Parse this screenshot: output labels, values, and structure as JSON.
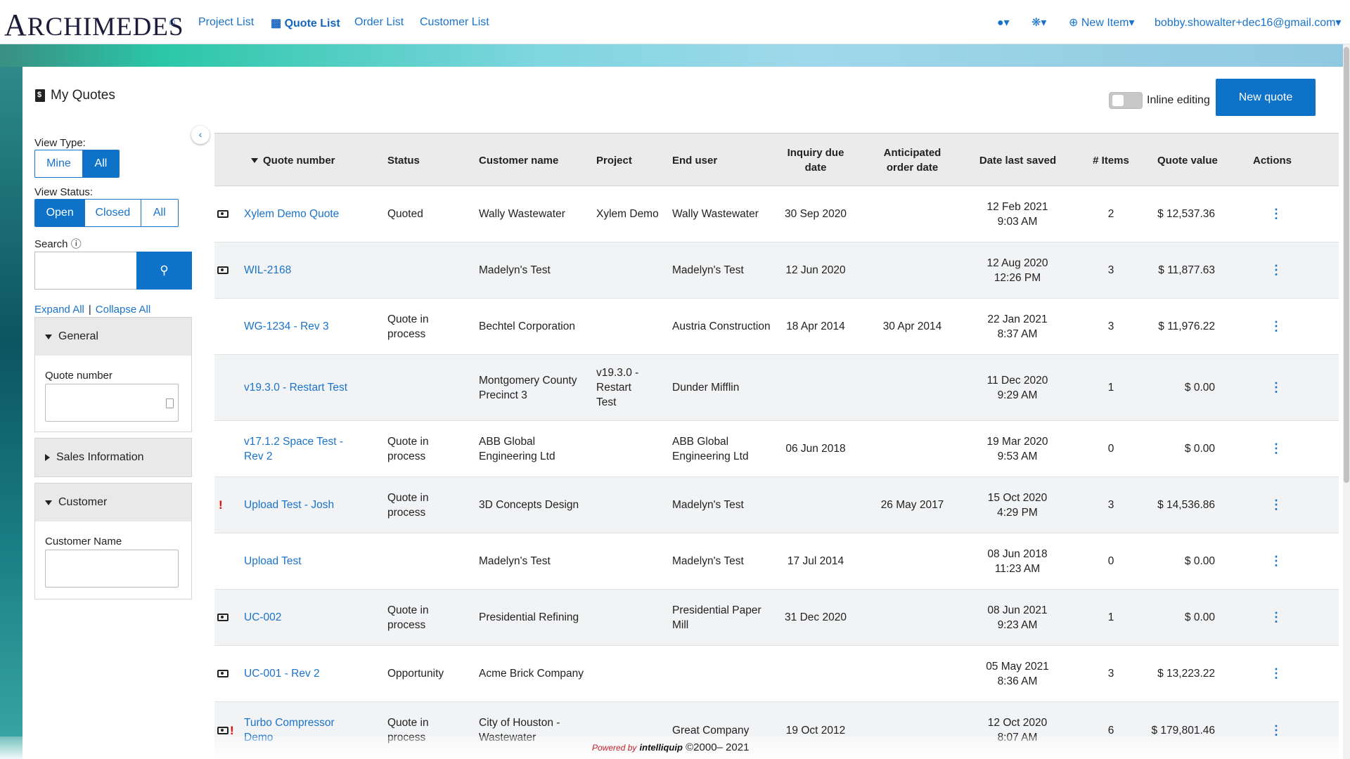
{
  "nav": {
    "logo_first": "A",
    "logo_rest": "RCHIMEDES",
    "links": [
      "Project List",
      "Quote List",
      "Order List",
      "Customer List"
    ],
    "new_item": "New Item",
    "user": "bobby.showalter+dec16@gmail.com"
  },
  "page": {
    "title": "My Quotes",
    "inline_editing": "Inline editing",
    "new_quote": "New quote"
  },
  "sidebar": {
    "view_type_label": "View Type:",
    "view_type": [
      "Mine",
      "All"
    ],
    "view_status_label": "View Status:",
    "view_status": [
      "Open",
      "Closed",
      "All"
    ],
    "search_label": "Search",
    "expand_all": "Expand All",
    "collapse_all": "Collapse All",
    "general": "General",
    "quote_number": "Quote number",
    "sales_information": "Sales Information",
    "customer": "Customer",
    "customer_name": "Customer Name"
  },
  "table": {
    "headers": {
      "quote_number": "Quote number",
      "status": "Status",
      "customer_name": "Customer name",
      "project": "Project",
      "end_user": "End user",
      "inquiry_due": "Inquiry due date",
      "anticipated": "Anticipated order date",
      "last_saved": "Date last saved",
      "items": "# Items",
      "value": "Quote value",
      "actions": "Actions"
    },
    "rows": [
      {
        "quote": "Xylem Demo Quote",
        "status": "Quoted",
        "customer": "Wally Wastewater",
        "project": "Xylem Demo",
        "end_user": "Wally Wastewater",
        "inquiry": "30 Sep 2020",
        "anticipated": "",
        "saved": "12 Feb 2021 9:03 AM",
        "items": "2",
        "value": "$ 12,537.36"
      },
      {
        "quote": "WIL-2168",
        "status": "",
        "customer": "Madelyn's Test",
        "project": "",
        "end_user": "Madelyn's Test",
        "inquiry": "12 Jun 2020",
        "anticipated": "",
        "saved": "12 Aug 2020 12:26 PM",
        "items": "3",
        "value": "$ 11,877.63"
      },
      {
        "quote": "WG-1234 - Rev 3",
        "status": "Quote in process",
        "customer": "Bechtel Corporation",
        "project": "",
        "end_user": "Austria Construction",
        "inquiry": "18 Apr 2014",
        "anticipated": "30 Apr 2014",
        "saved": "22 Jan 2021 8:37 AM",
        "items": "3",
        "value": "$ 11,976.22"
      },
      {
        "quote": "v19.3.0 - Restart Test",
        "status": "",
        "customer": "Montgomery County Precinct 3",
        "project": "v19.3.0 - Restart Test",
        "end_user": "Dunder Mifflin",
        "inquiry": "",
        "anticipated": "",
        "saved": "11 Dec 2020 9:29 AM",
        "items": "1",
        "value": "$ 0.00"
      },
      {
        "quote": "v17.1.2 Space Test - Rev 2",
        "status": "Quote in process",
        "customer": "ABB Global Engineering Ltd",
        "project": "",
        "end_user": "ABB Global Engineering Ltd",
        "inquiry": "06 Jun 2018",
        "anticipated": "",
        "saved": "19 Mar 2020 9:53 AM",
        "items": "0",
        "value": "$ 0.00"
      },
      {
        "quote": "Upload Test - Josh",
        "status": "Quote in process",
        "customer": "3D Concepts Design",
        "project": "",
        "end_user": "Madelyn's Test",
        "inquiry": "",
        "anticipated": "26 May 2017",
        "saved": "15 Oct 2020 4:29 PM",
        "items": "3",
        "value": "$ 14,536.86"
      },
      {
        "quote": "Upload Test",
        "status": "",
        "customer": "Madelyn's Test",
        "project": "",
        "end_user": "Madelyn's Test",
        "inquiry": "17 Jul 2014",
        "anticipated": "",
        "saved": "08 Jun 2018 11:23 AM",
        "items": "0",
        "value": "$ 0.00"
      },
      {
        "quote": "UC-002",
        "status": "Quote in process",
        "customer": "Presidential Refining",
        "project": "",
        "end_user": "Presidential Paper Mill",
        "inquiry": "31 Dec 2020",
        "anticipated": "",
        "saved": "08 Jun 2021 9:23 AM",
        "items": "1",
        "value": "$ 0.00"
      },
      {
        "quote": "UC-001 - Rev 2",
        "status": "Opportunity",
        "customer": "Acme Brick Company",
        "project": "",
        "end_user": "",
        "inquiry": "",
        "anticipated": "",
        "saved": "05 May 2021 8:36 AM",
        "items": "3",
        "value": "$ 13,223.22"
      },
      {
        "quote": "Turbo Compressor Demo",
        "status": "Quote in process",
        "customer": "City of Houston - Wastewater",
        "project": "",
        "end_user": "Great Company",
        "inquiry": "19 Oct 2012",
        "anticipated": "",
        "saved": "12 Oct 2020 8:07 AM",
        "items": "6",
        "value": "$ 179,801.46"
      }
    ]
  },
  "footer": {
    "powered_by": "Powered by",
    "brand": "intelliquip",
    "copyright": "©2000– 2021"
  }
}
